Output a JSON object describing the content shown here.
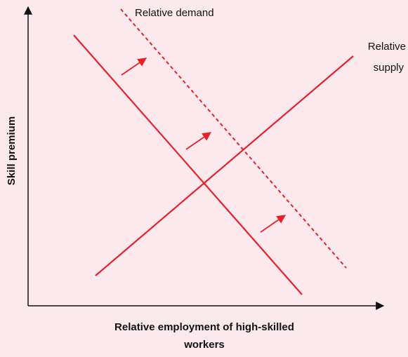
{
  "diagram": {
    "demand_label": "Relative demand",
    "supply_label": [
      "Relative",
      "supply"
    ],
    "y_axis_label": "Skill premium",
    "x_axis_label": [
      "Relative employment of high-skilled",
      "workers"
    ]
  }
}
